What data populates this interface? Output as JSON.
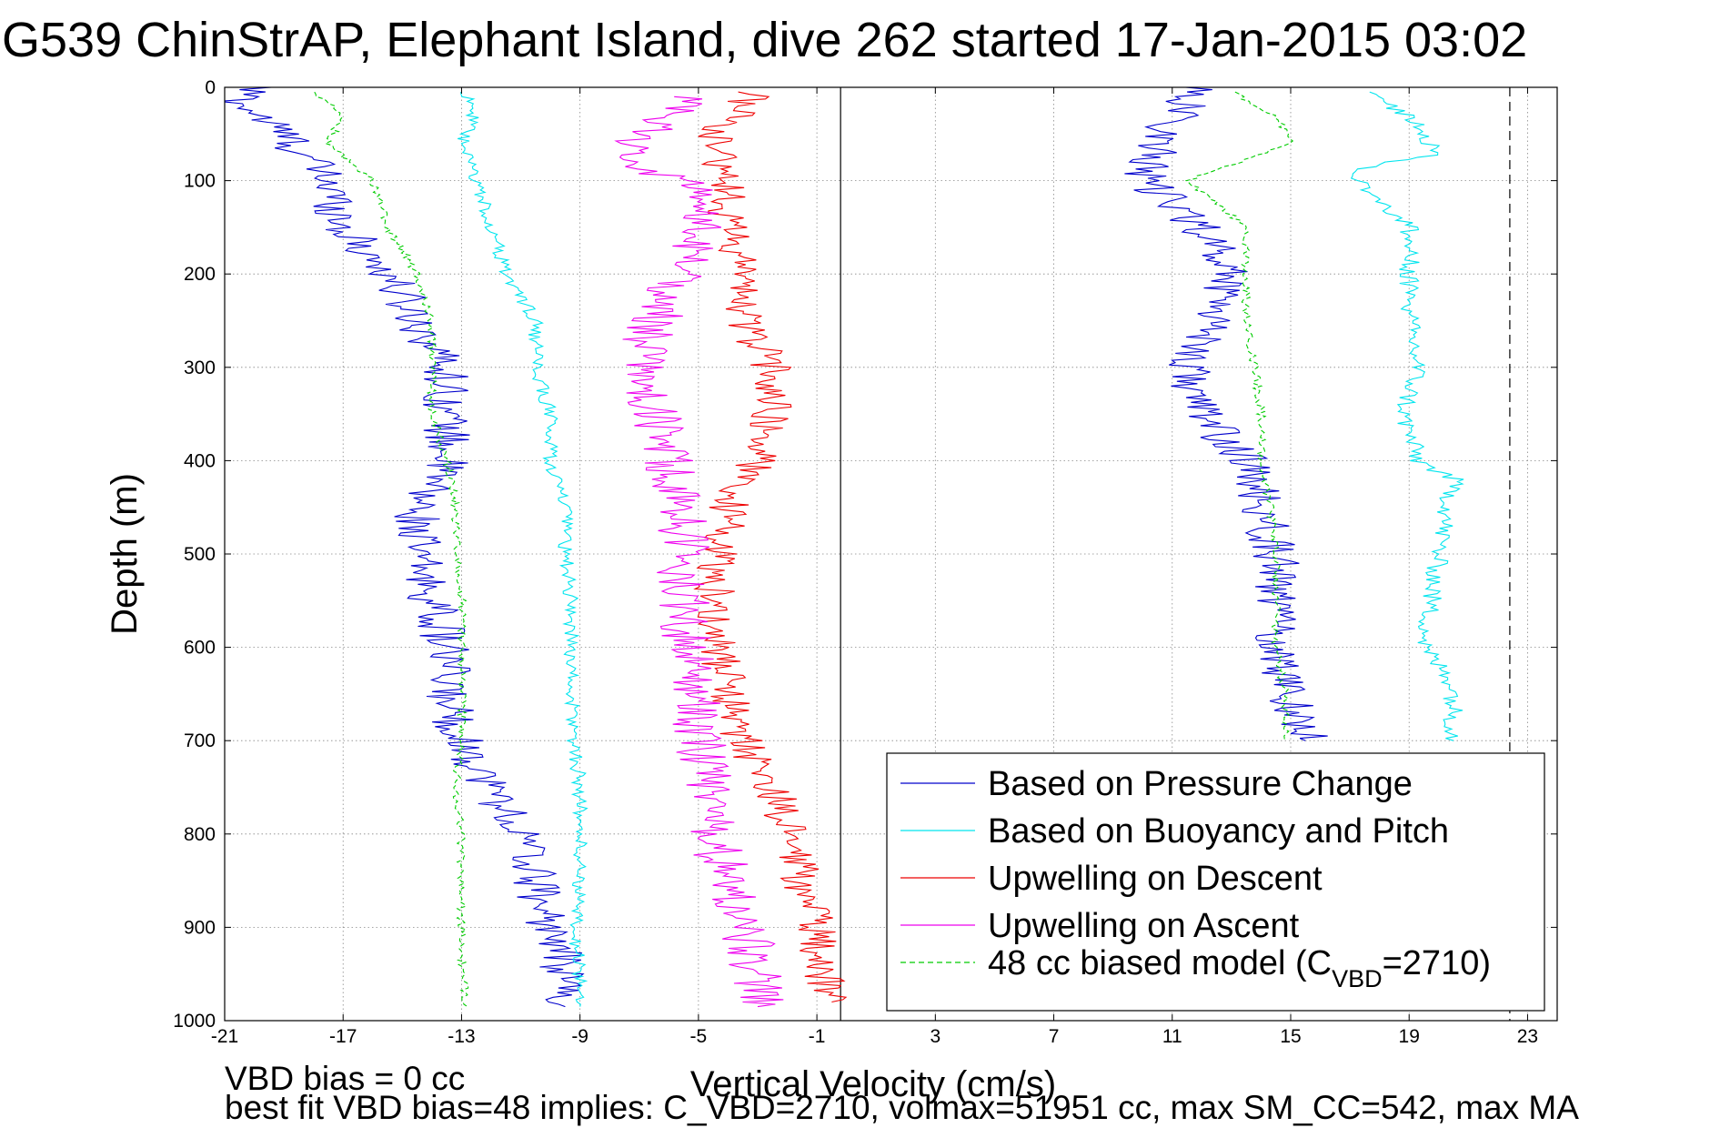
{
  "title": "G539 ChinStrAP, Elephant Island, dive 262 started 17-Jan-2015 03:02",
  "footer": {
    "line1": "VBD bias = 0 cc",
    "line2": "best fit VBD bias=48 implies: C_VBD=2710, volmax=51951 cc, max SM_CC=542, max MA"
  },
  "colors": {
    "pressure": "#0000cc",
    "buoyancy": "#00e5ee",
    "descent": "#ee0000",
    "ascent": "#ee00ee",
    "model": "#00cc00"
  },
  "chart_data": {
    "type": "line",
    "title": "G539 ChinStrAP, Elephant Island, dive 262 started 17-Jan-2015 03:02",
    "xlabel": "Vertical Velocity (cm/s)",
    "ylabel": "Depth (m)",
    "xlim": [
      -21,
      24
    ],
    "ylim": [
      0,
      1000
    ],
    "y_reversed": true,
    "grid": true,
    "legend_position": "bottom-right",
    "xticks": [
      "-21",
      "-17",
      "-13",
      "-9",
      "-5",
      "-1",
      "3",
      "7",
      "11",
      "15",
      "19",
      "23"
    ],
    "yticks": [
      "0",
      "100",
      "200",
      "300",
      "400",
      "500",
      "600",
      "700",
      "800",
      "900",
      "1000"
    ],
    "vertical_lines": [
      {
        "x": -0.2,
        "style": "solid"
      },
      {
        "x": 22.4,
        "style": "dashed"
      }
    ],
    "legend": [
      {
        "label": "Based on Pressure Change",
        "color": "#0000cc",
        "style": "solid"
      },
      {
        "label": "Based on Buoyancy and Pitch",
        "color": "#00e5ee",
        "style": "solid"
      },
      {
        "label": "Upwelling on Descent",
        "color": "#ee0000",
        "style": "solid"
      },
      {
        "label": "Upwelling on Ascent",
        "color": "#ee00ee",
        "style": "solid"
      },
      {
        "label": "48 cc biased model (C",
        "sub": "VBD",
        "suffix": "=2710)",
        "color": "#00cc00",
        "style": "dashed"
      }
    ],
    "series": [
      {
        "name": "Based on Pressure Change",
        "color": "#0000cc",
        "noise": 0.8,
        "style": "solid",
        "depth": [
          0,
          15,
          50,
          100,
          150,
          200,
          250,
          300,
          350,
          400,
          450,
          500,
          600,
          650,
          700,
          750,
          800,
          850,
          900,
          950,
          985
        ],
        "values": [
          -20,
          -20.5,
          -19,
          -17.5,
          -17,
          -15.5,
          -14.5,
          -13.5,
          -13.5,
          -13.5,
          -14.5,
          -14.5,
          -13.5,
          -13.5,
          -13,
          -12,
          -11,
          -10.5,
          -10,
          -9.5,
          -9.5
        ]
      },
      {
        "name": "Based on Pressure Change",
        "color": "#0000cc",
        "noise": 0.8,
        "style": "solid",
        "depth": [
          0,
          15,
          60,
          100,
          150,
          200,
          250,
          300,
          350,
          400,
          450,
          500,
          600,
          650,
          700
        ],
        "values": [
          12,
          11.5,
          10.5,
          10,
          12,
          13,
          12.5,
          11.5,
          12,
          13.5,
          14,
          14.5,
          14.5,
          15,
          15.5
        ]
      },
      {
        "name": "Based on Buoyancy and Pitch",
        "color": "#00e5ee",
        "noise": 0.25,
        "style": "solid",
        "depth": [
          5,
          20,
          60,
          100,
          150,
          200,
          250,
          300,
          350,
          400,
          450,
          500,
          550,
          600,
          650,
          700,
          750,
          800,
          850,
          900,
          950,
          985
        ],
        "values": [
          -13,
          -12.5,
          -13,
          -12.5,
          -12,
          -11.5,
          -10.5,
          -10.5,
          -10,
          -10,
          -9.5,
          -9.5,
          -9.3,
          -9.3,
          -9.3,
          -9.2,
          -9,
          -9,
          -9,
          -9.2,
          -9,
          -9
        ]
      },
      {
        "name": "Based on Buoyancy and Pitch",
        "color": "#00e5ee",
        "noise": 0.35,
        "style": "solid",
        "depth": [
          5,
          30,
          70,
          90,
          120,
          150,
          200,
          250,
          300,
          350,
          400,
          420,
          500,
          600,
          640,
          700
        ],
        "values": [
          17.5,
          19,
          20,
          17,
          18,
          19,
          19,
          19,
          19.3,
          18.8,
          19.3,
          20.5,
          20,
          19.5,
          20.5,
          20.5
        ]
      },
      {
        "name": "Upwelling on Descent",
        "color": "#ee0000",
        "noise": 0.7,
        "style": "solid",
        "depth": [
          5,
          50,
          100,
          150,
          200,
          250,
          300,
          350,
          400,
          450,
          500,
          550,
          600,
          650,
          700,
          750,
          800,
          850,
          900,
          950,
          980
        ],
        "values": [
          -3,
          -4.5,
          -4,
          -4,
          -3.5,
          -3.5,
          -2.5,
          -2.5,
          -3,
          -4,
          -4.3,
          -4.5,
          -4.3,
          -4,
          -3.5,
          -2.5,
          -2,
          -1.5,
          -1,
          -0.8,
          -0.5
        ]
      },
      {
        "name": "Upwelling on Ascent",
        "color": "#ee00ee",
        "noise": 0.9,
        "style": "solid",
        "depth": [
          10,
          40,
          80,
          100,
          150,
          200,
          250,
          300,
          350,
          400,
          450,
          500,
          550,
          600,
          650,
          700,
          750,
          800,
          850,
          900,
          950,
          985
        ],
        "values": [
          -5.5,
          -6.5,
          -7.5,
          -5.5,
          -5,
          -5.5,
          -6.5,
          -7,
          -6.5,
          -6,
          -5.5,
          -5.5,
          -5.5,
          -5.3,
          -5,
          -5,
          -4.5,
          -4.5,
          -4,
          -3.5,
          -3,
          -3
        ]
      },
      {
        "name": "48 cc biased model (C_VBD=2710)",
        "color": "#00cc00",
        "noise": 0.15,
        "style": "dashed",
        "depth": [
          5,
          30,
          60,
          100,
          150,
          200,
          250,
          300,
          350,
          400,
          450,
          500,
          550,
          600,
          650,
          700,
          750,
          800,
          850,
          900,
          950,
          985
        ],
        "values": [
          -18,
          -17,
          -17.5,
          -16,
          -15.5,
          -14.5,
          -14,
          -14,
          -14,
          -13.5,
          -13.2,
          -13.2,
          -13,
          -13,
          -13,
          -13,
          -13.2,
          -13,
          -13,
          -13,
          -13,
          -12.8
        ]
      },
      {
        "name": "48 cc biased model (C_VBD=2710)",
        "color": "#00cc00",
        "noise": 0.15,
        "style": "dashed",
        "depth": [
          5,
          30,
          60,
          100,
          150,
          200,
          250,
          300,
          350,
          400,
          450,
          500,
          550,
          600,
          650,
          700
        ],
        "values": [
          13,
          14.5,
          15,
          11.5,
          13.5,
          13.5,
          13.5,
          13.8,
          14,
          14,
          14.3,
          14.5,
          14.5,
          14.5,
          14.8,
          14.8
        ]
      }
    ]
  }
}
